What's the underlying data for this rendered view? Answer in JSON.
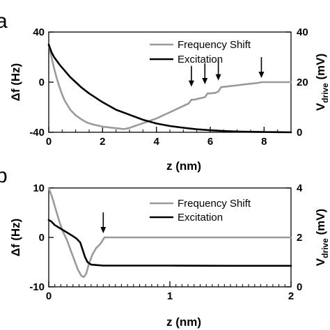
{
  "chart_data": [
    {
      "panel": "a",
      "type": "line",
      "xlabel": "z (nm)",
      "ylabel_left": "Δf (Hz)",
      "ylabel_right_main": "V",
      "ylabel_right_sub": "drive",
      "ylabel_right_unit": "(mV)",
      "xlim": [
        0,
        9
      ],
      "ylim_left": [
        -40,
        40
      ],
      "ylim_right": [
        0,
        40
      ],
      "xticks": [
        "0",
        "2",
        "4",
        "6",
        "8"
      ],
      "xtick_values": [
        0,
        2,
        4,
        6,
        8
      ],
      "yticks_left": [
        "40",
        "0",
        "-40"
      ],
      "ytick_values_left": [
        40,
        0,
        -40
      ],
      "yticks_right": [
        "40",
        "20",
        "0"
      ],
      "ytick_values_right": [
        40,
        20,
        0
      ],
      "legend_position": "top-right",
      "arrows_x": [
        5.3,
        5.8,
        6.3,
        7.9
      ],
      "arrows_y": [
        -7,
        -5,
        -2,
        0
      ],
      "series": [
        {
          "name": "Frequency Shift",
          "axis": "left",
          "color": "#9a9a9a",
          "x": [
            0,
            0.1,
            0.2,
            0.3,
            0.4,
            0.5,
            0.6,
            0.8,
            1.0,
            1.2,
            1.4,
            1.6,
            1.8,
            2.0,
            2.2,
            2.4,
            2.6,
            2.8,
            3.0,
            3.2,
            3.4,
            3.6,
            3.8,
            4.0,
            4.2,
            4.4,
            4.6,
            4.8,
            5.0,
            5.2,
            5.3,
            5.4,
            5.6,
            5.8,
            5.9,
            6.0,
            6.2,
            6.3,
            6.4,
            6.6,
            6.8,
            7.0,
            7.2,
            7.4,
            7.6,
            7.8,
            7.9,
            8.0,
            8.5,
            9.0
          ],
          "y": [
            30,
            20,
            11,
            3,
            -4,
            -10,
            -15,
            -22,
            -26.5,
            -29.5,
            -32,
            -33.5,
            -34.5,
            -35.5,
            -36,
            -36.5,
            -37,
            -37.5,
            -36.5,
            -35,
            -33.5,
            -32,
            -30.5,
            -29,
            -27,
            -25,
            -23,
            -21,
            -19,
            -17,
            -14,
            -14,
            -13,
            -12,
            -9,
            -9,
            -8.5,
            -7.5,
            -4,
            -3.5,
            -3,
            -2.5,
            -2,
            -1.5,
            -1,
            -0.5,
            0,
            0,
            0,
            0
          ]
        },
        {
          "name": "Excitation",
          "axis": "right",
          "color": "#000000",
          "x": [
            0,
            0.1,
            0.2,
            0.4,
            0.6,
            0.8,
            1.0,
            1.2,
            1.5,
            2.0,
            2.5,
            3.0,
            3.5,
            4.0,
            4.5,
            5.0,
            5.5,
            6.0,
            6.5,
            7.0,
            7.5,
            8.0,
            8.5,
            9.0
          ],
          "y": [
            35,
            32,
            30,
            27,
            24.5,
            22,
            20,
            18,
            15.5,
            12,
            9,
            7,
            5,
            3.5,
            2.5,
            1.8,
            1.2,
            0.8,
            0.5,
            0.3,
            0.2,
            0.1,
            0.05,
            0
          ]
        }
      ]
    },
    {
      "panel": "b",
      "type": "line",
      "xlabel": "z (nm)",
      "ylabel_left": "Δf (Hz)",
      "ylabel_right_main": "V",
      "ylabel_right_sub": "drive",
      "ylabel_right_unit": "(mV)",
      "xlim": [
        0,
        2
      ],
      "ylim_left": [
        -10,
        10
      ],
      "ylim_right": [
        0,
        4
      ],
      "xticks": [
        "0",
        "1",
        "2"
      ],
      "xtick_values": [
        0,
        1,
        2
      ],
      "yticks_left": [
        "10",
        "0",
        "-10"
      ],
      "ytick_values_left": [
        10,
        0,
        -10
      ],
      "yticks_right": [
        "4",
        "2",
        "0"
      ],
      "ytick_values_right": [
        4,
        2,
        0
      ],
      "legend_position": "top-right",
      "arrows_x": [
        0.45
      ],
      "arrows_y": [
        0
      ],
      "series": [
        {
          "name": "Frequency Shift",
          "axis": "left",
          "color": "#9a9a9a",
          "x": [
            0,
            0.03,
            0.06,
            0.09,
            0.12,
            0.15,
            0.18,
            0.21,
            0.24,
            0.27,
            0.29,
            0.31,
            0.33,
            0.36,
            0.39,
            0.42,
            0.44,
            0.46,
            0.5,
            0.7,
            1.0,
            1.5,
            2.0
          ],
          "y": [
            10,
            8,
            5.5,
            3,
            1,
            -0.5,
            -2.5,
            -4.5,
            -6.5,
            -7.8,
            -8,
            -7.3,
            -5.5,
            -3.5,
            -2.2,
            -1.5,
            -0.8,
            0,
            0,
            0,
            0,
            0,
            0
          ]
        },
        {
          "name": "Excitation",
          "axis": "right",
          "color": "#000000",
          "x": [
            0,
            0.02,
            0.05,
            0.1,
            0.15,
            0.2,
            0.23,
            0.26,
            0.28,
            0.3,
            0.32,
            0.35,
            0.4,
            0.45,
            0.5,
            0.7,
            1.0,
            1.5,
            2.0
          ],
          "y": [
            2.7,
            2.65,
            2.5,
            2.35,
            2.2,
            2.05,
            1.95,
            1.8,
            1.5,
            1.2,
            1.0,
            0.9,
            0.88,
            0.86,
            0.86,
            0.86,
            0.86,
            0.85,
            0.85
          ]
        }
      ]
    }
  ]
}
